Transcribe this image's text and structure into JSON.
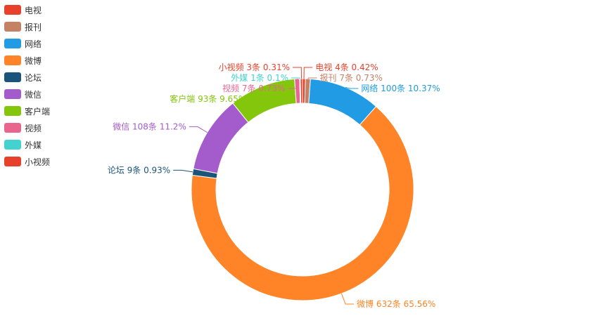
{
  "chart_data": {
    "type": "pie",
    "donut": true,
    "legend_position": "left",
    "slices": [
      {
        "name": "电视",
        "value": 4,
        "percent": 0.42,
        "label": "电视 4条  0.42%",
        "color": "#e8412b"
      },
      {
        "name": "报刊",
        "value": 7,
        "percent": 0.73,
        "label": "报刊 7条  0.73%",
        "color": "#c58164"
      },
      {
        "name": "网络",
        "value": 100,
        "percent": 10.37,
        "label": "网络 100条  10.37%",
        "color": "#219be4"
      },
      {
        "name": "微博",
        "value": 632,
        "percent": 65.56,
        "label": "微博 632条  65.56%",
        "color": "#fe8427"
      },
      {
        "name": "论坛",
        "value": 9,
        "percent": 0.93,
        "label": "论坛 9条  0.93%",
        "color": "#1b5479"
      },
      {
        "name": "微信",
        "value": 108,
        "percent": 11.2,
        "label": "微信 108条  11.2%",
        "color": "#a45ccc"
      },
      {
        "name": "客户端",
        "value": 93,
        "percent": 9.65,
        "label": "客户端 93条  9.65%",
        "color": "#83c60b"
      },
      {
        "name": "视频",
        "value": 7,
        "percent": 0.73,
        "label": "视频 7条  0.73%",
        "color": "#e86590"
      },
      {
        "name": "外媒",
        "value": 1,
        "percent": 0.1,
        "label": "外媒 1条  0.1%",
        "color": "#42d2cf"
      },
      {
        "name": "小视频",
        "value": 3,
        "percent": 0.31,
        "label": "小视频 3条  0.31%",
        "color": "#e8412b"
      }
    ]
  }
}
